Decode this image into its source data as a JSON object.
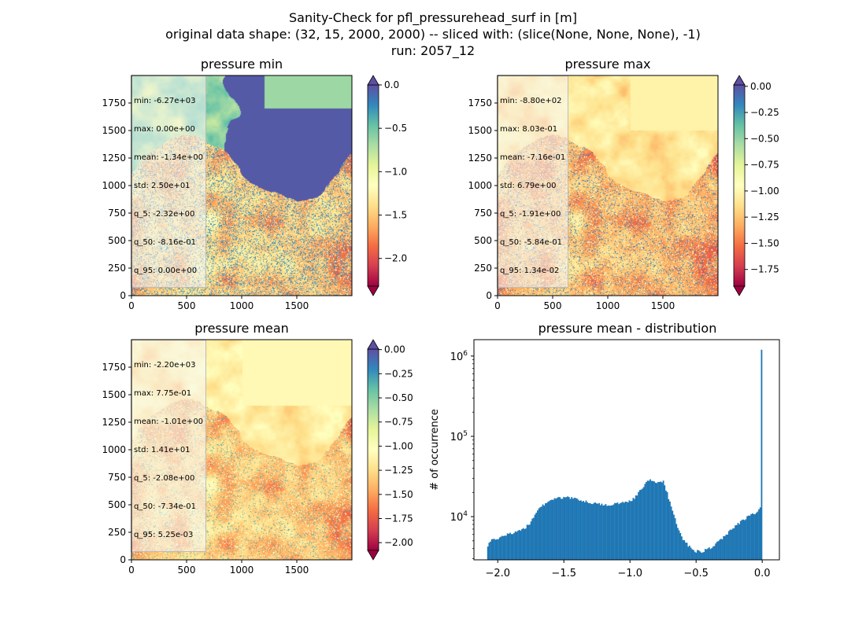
{
  "figure": {
    "title_lines": [
      "Sanity-Check for pfl_pressurehead_surf in [m]",
      "original data shape: (32, 15, 2000, 2000) -- sliced with: (slice(None, None, None), -1)",
      "run: 2057_12"
    ]
  },
  "chart_data": [
    {
      "type": "heatmap",
      "title": "pressure min",
      "colormap": "Spectral",
      "xlim": [
        0,
        2000
      ],
      "ylim": [
        0,
        2000
      ],
      "xticks": [
        "0",
        "500",
        "1000",
        "1500"
      ],
      "yticks": [
        "0",
        "250",
        "500",
        "750",
        "1000",
        "1250",
        "1500",
        "1750"
      ],
      "colorbar": {
        "range": [
          -2.32,
          0.0
        ],
        "extend": "both",
        "ticks": [
          {
            "v": 0.0,
            "label": "0.0"
          },
          {
            "v": -0.5,
            "label": "−0.5"
          },
          {
            "v": -1.0,
            "label": "−1.0"
          },
          {
            "v": -1.5,
            "label": "−1.5"
          },
          {
            "v": -2.0,
            "label": "−2.0"
          }
        ]
      },
      "stats": [
        "min: -6.27e+03",
        "max: 0.00e+00",
        "mean: -1.34e+00",
        "std: 2.50e+01",
        "q_5: -2.32e+00",
        "q_50: -8.16e-01",
        "q_95: 0.00e+00"
      ]
    },
    {
      "type": "heatmap",
      "title": "pressure max",
      "colormap": "Spectral",
      "xlim": [
        0,
        2000
      ],
      "ylim": [
        0,
        2000
      ],
      "xticks": [
        "0",
        "500",
        "1000",
        "1500"
      ],
      "yticks": [
        "0",
        "250",
        "500",
        "750",
        "1000",
        "1250",
        "1500",
        "1750"
      ],
      "colorbar": {
        "range": [
          -1.91,
          0.0134
        ],
        "extend": "both",
        "ticks": [
          {
            "v": 0.0,
            "label": "0.00"
          },
          {
            "v": -0.25,
            "label": "−0.25"
          },
          {
            "v": -0.5,
            "label": "−0.50"
          },
          {
            "v": -0.75,
            "label": "−0.75"
          },
          {
            "v": -1.0,
            "label": "−1.00"
          },
          {
            "v": -1.25,
            "label": "−1.25"
          },
          {
            "v": -1.5,
            "label": "−1.50"
          },
          {
            "v": -1.75,
            "label": "−1.75"
          }
        ]
      },
      "stats": [
        "min: -8.80e+02",
        "max: 8.03e-01",
        "mean: -7.16e-01",
        "std: 6.79e+00",
        "q_5: -1.91e+00",
        "q_50: -5.84e-01",
        "q_95: 1.34e-02"
      ]
    },
    {
      "type": "heatmap",
      "title": "pressure mean",
      "colormap": "Spectral",
      "xlim": [
        0,
        2000
      ],
      "ylim": [
        0,
        2000
      ],
      "xticks": [
        "0",
        "500",
        "1000",
        "1500"
      ],
      "yticks": [
        "0",
        "250",
        "500",
        "750",
        "1000",
        "1250",
        "1500",
        "1750"
      ],
      "colorbar": {
        "range": [
          -2.08,
          0.00525
        ],
        "extend": "both",
        "ticks": [
          {
            "v": 0.0,
            "label": "0.00"
          },
          {
            "v": -0.25,
            "label": "−0.25"
          },
          {
            "v": -0.5,
            "label": "−0.50"
          },
          {
            "v": -0.75,
            "label": "−0.75"
          },
          {
            "v": -1.0,
            "label": "−1.00"
          },
          {
            "v": -1.25,
            "label": "−1.25"
          },
          {
            "v": -1.5,
            "label": "−1.50"
          },
          {
            "v": -1.75,
            "label": "−1.75"
          },
          {
            "v": -2.0,
            "label": "−2.00"
          }
        ]
      },
      "stats": [
        "min: -2.20e+03",
        "max: 7.75e-01",
        "mean: -1.01e+00",
        "std: 1.41e+01",
        "q_5: -2.08e+00",
        "q_50: -7.34e-01",
        "q_95: 5.25e-03"
      ]
    },
    {
      "type": "bar",
      "title": "pressure mean - distribution",
      "ylabel": "# of occurrence",
      "xlabel": "",
      "yscale": "log",
      "xlim": [
        -2.18,
        0.13
      ],
      "ylim": [
        2900,
        1600000
      ],
      "xticks": [
        {
          "v": -2.0,
          "label": "−2.0"
        },
        {
          "v": -1.5,
          "label": "−1.5"
        },
        {
          "v": -1.0,
          "label": "−1.0"
        },
        {
          "v": -0.5,
          "label": "−0.5"
        },
        {
          "v": 0.0,
          "label": "0.0"
        }
      ],
      "yticks": [
        {
          "v": 10000,
          "base": "10",
          "exp": "4"
        },
        {
          "v": 100000,
          "base": "10",
          "exp": "5"
        },
        {
          "v": 1000000,
          "base": "10",
          "exp": "6"
        }
      ],
      "bar_color": "#1f77b4",
      "bins": {
        "start": -2.08,
        "end": 0.0,
        "anchors": [
          [
            -2.08,
            4000
          ],
          [
            -2.06,
            5000
          ],
          [
            -2.0,
            5400
          ],
          [
            -1.9,
            6200
          ],
          [
            -1.8,
            7000
          ],
          [
            -1.75,
            8500
          ],
          [
            -1.7,
            12000
          ],
          [
            -1.6,
            16500
          ],
          [
            -1.5,
            17500
          ],
          [
            -1.4,
            16500
          ],
          [
            -1.3,
            15000
          ],
          [
            -1.2,
            14000
          ],
          [
            -1.1,
            14500
          ],
          [
            -1.0,
            15500
          ],
          [
            -0.95,
            18000
          ],
          [
            -0.9,
            24000
          ],
          [
            -0.85,
            29000
          ],
          [
            -0.8,
            26500
          ],
          [
            -0.75,
            28000
          ],
          [
            -0.72,
            20000
          ],
          [
            -0.68,
            12000
          ],
          [
            -0.64,
            7500
          ],
          [
            -0.6,
            5200
          ],
          [
            -0.55,
            4200
          ],
          [
            -0.5,
            3700
          ],
          [
            -0.45,
            3700
          ],
          [
            -0.4,
            4000
          ],
          [
            -0.35,
            4600
          ],
          [
            -0.3,
            5400
          ],
          [
            -0.25,
            6500
          ],
          [
            -0.2,
            7600
          ],
          [
            -0.15,
            9000
          ],
          [
            -0.1,
            10200
          ],
          [
            -0.05,
            11200
          ],
          [
            -0.02,
            12200
          ],
          [
            -0.008,
            15000
          ],
          [
            -0.004,
            26000
          ],
          [
            0.0,
            1200000
          ]
        ]
      }
    }
  ]
}
